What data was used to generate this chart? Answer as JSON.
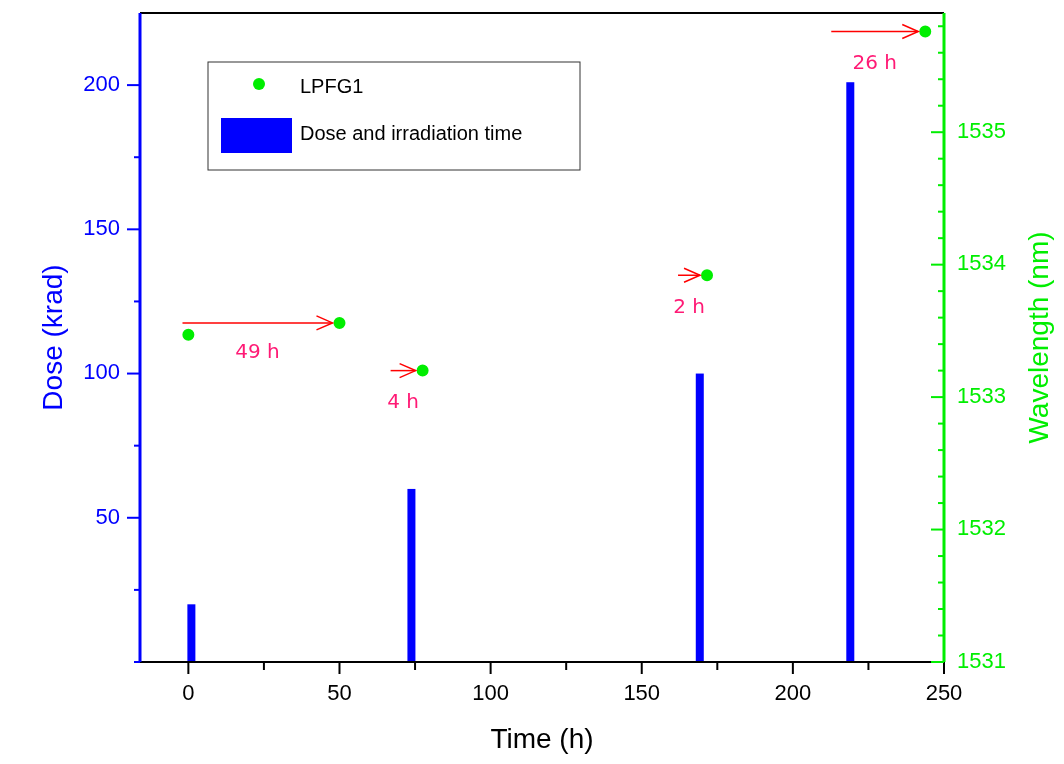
{
  "chart_data": {
    "type": "bar",
    "xlabel": "Time (h)",
    "ylabel": "Dose (krad)",
    "y2label": "Wavelength (nm)",
    "xlim": [
      -16,
      250
    ],
    "xticks": [
      0,
      {
        "value": 25,
        "label": null
      },
      50,
      {
        "value": 75,
        "label": null
      },
      100,
      {
        "value": 125,
        "label": null
      },
      150,
      {
        "value": 175,
        "label": null
      },
      200,
      {
        "value": 225,
        "label": null
      },
      250
    ],
    "ylim": [
      0,
      225
    ],
    "yticks": [
      {
        "value": 0,
        "label": null
      },
      {
        "value": 25,
        "label": null
      },
      50,
      {
        "value": 75,
        "label": null
      },
      100,
      {
        "value": 125,
        "label": null
      },
      150,
      {
        "value": 175,
        "label": null
      },
      200
    ],
    "y2lim": [
      1531,
      1535.9
    ],
    "y2ticks": [
      1531,
      {
        "value": 1531.2,
        "label": null
      },
      {
        "value": 1531.4,
        "label": null
      },
      {
        "value": 1531.6,
        "label": null
      },
      {
        "value": 1531.8,
        "label": null
      },
      1532,
      {
        "value": 1532.2,
        "label": null
      },
      {
        "value": 1532.4,
        "label": null
      },
      {
        "value": 1532.6,
        "label": null
      },
      {
        "value": 1532.8,
        "label": null
      },
      1533,
      {
        "value": 1533.2,
        "label": null
      },
      {
        "value": 1533.4,
        "label": null
      },
      {
        "value": 1533.6,
        "label": null
      },
      {
        "value": 1533.8,
        "label": null
      },
      1534,
      {
        "value": 1534.2,
        "label": null
      },
      {
        "value": 1534.4,
        "label": null
      },
      {
        "value": 1534.6,
        "label": null
      },
      {
        "value": 1534.8,
        "label": null
      },
      1535,
      {
        "value": 1535.2,
        "label": null
      },
      {
        "value": 1535.4,
        "label": null
      },
      {
        "value": 1535.6,
        "label": null
      },
      {
        "value": 1535.8,
        "label": null
      }
    ],
    "series": [
      {
        "name": "LPFG1",
        "type": "scatter",
        "axis": "y2",
        "color": "#00ee00",
        "marker": "circle",
        "x": [
          0,
          50,
          77.5,
          171.6,
          243.8
        ],
        "values": [
          1533.47,
          1533.56,
          1533.2,
          1533.92,
          1535.76
        ]
      },
      {
        "name": "Dose and irradiation time",
        "color": "#0000ff",
        "x": [
          1,
          73.8,
          169.2,
          219
        ],
        "values": [
          20,
          60,
          100,
          201
        ]
      }
    ],
    "annotations": [
      "49 h",
      "4 h",
      "2 h",
      "26 h"
    ],
    "legend": "top left"
  }
}
